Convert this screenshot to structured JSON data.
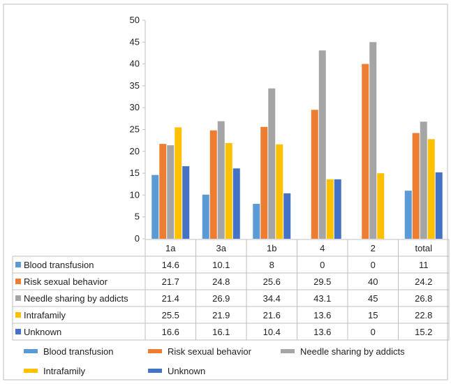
{
  "chart_data": {
    "type": "bar",
    "categories": [
      "1a",
      "3a",
      "1b",
      "4",
      "2",
      "total"
    ],
    "ylim": [
      0,
      50
    ],
    "yticks": [
      0,
      5,
      10,
      15,
      20,
      25,
      30,
      35,
      40,
      45,
      50
    ],
    "grid": false,
    "legend_position": "bottom",
    "has_data_table": true,
    "series": [
      {
        "name": "Blood transfusion",
        "color": "#5B9BD5",
        "values": [
          14.6,
          10.1,
          8,
          0,
          0,
          11
        ]
      },
      {
        "name": "Risk sexual behavior",
        "color": "#ED7D31",
        "values": [
          21.7,
          24.8,
          25.6,
          29.5,
          40,
          24.2
        ]
      },
      {
        "name": "Needle sharing by addicts",
        "color": "#A5A5A5",
        "values": [
          21.4,
          26.9,
          34.4,
          43.1,
          45,
          26.8
        ]
      },
      {
        "name": "Intrafamily",
        "color": "#FFC000",
        "values": [
          25.5,
          21.9,
          21.6,
          13.6,
          15,
          22.8
        ]
      },
      {
        "name": "Unknown",
        "color": "#4472C4",
        "values": [
          16.6,
          16.1,
          10.4,
          13.6,
          0,
          15.2
        ]
      }
    ]
  }
}
